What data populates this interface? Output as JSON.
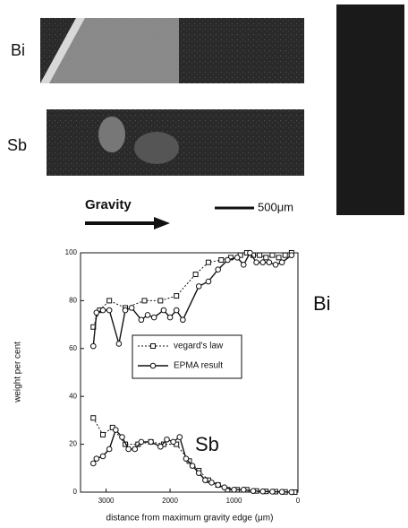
{
  "figure": {
    "maps": [
      "Bi",
      "Sb"
    ],
    "gravity": "Gravity",
    "scale": "500μm"
  },
  "chart_data": {
    "type": "line",
    "xlabel": "distance from maximum gravity edge (μm)",
    "ylabel": "weight per cent",
    "xlim": [
      3400,
      0
    ],
    "xticks": [
      3000,
      2000,
      1000,
      0
    ],
    "ylim": [
      0,
      100
    ],
    "yticks": [
      0,
      20,
      40,
      60,
      80,
      100
    ],
    "annotations": [
      "Bi",
      "Sb"
    ],
    "series": [
      {
        "name": "vegard's law",
        "color": "#111111",
        "marker": "square",
        "dashed": true,
        "x": [
          3200,
          3100,
          2950,
          2700,
          2400,
          2150,
          1900,
          1600,
          1400,
          1200,
          1050,
          900,
          800,
          700,
          600,
          500,
          400,
          300,
          200,
          100
        ],
        "values": [
          69,
          76,
          80,
          77,
          80,
          80,
          82,
          91,
          96,
          97,
          98,
          99,
          100,
          99,
          99,
          98,
          99,
          98,
          99,
          100
        ]
      },
      {
        "name": "EPMA result",
        "color": "#111111",
        "marker": "circle",
        "dashed": false,
        "x": [
          3200,
          3150,
          3050,
          2950,
          2800,
          2700,
          2600,
          2450,
          2350,
          2250,
          2100,
          2000,
          1900,
          1800,
          1550,
          1400,
          1250,
          1100,
          950,
          850,
          750,
          650,
          550,
          450,
          350,
          250,
          100
        ],
        "values": [
          61,
          75,
          76,
          76,
          62,
          76,
          77,
          72,
          74,
          73,
          76,
          73,
          76,
          72,
          86,
          88,
          93,
          97,
          98,
          95,
          100,
          96,
          96,
          96,
          95,
          96,
          99
        ]
      },
      {
        "color": "#111111",
        "marker": "square",
        "dashed": true,
        "x": [
          3200,
          3050,
          2900,
          2700,
          2500,
          2300,
          2100,
          1900,
          1700,
          1550,
          1400,
          1250,
          1100,
          950,
          800,
          650,
          500,
          350,
          200,
          50
        ],
        "values": [
          31,
          24,
          27,
          20,
          20,
          21,
          20,
          20,
          13,
          9,
          5,
          3,
          1,
          1,
          1,
          0.5,
          0.3,
          0.2,
          0.1,
          0
        ]
      },
      {
        "color": "#111111",
        "marker": "circle",
        "dashed": false,
        "x": [
          3200,
          3150,
          3050,
          2950,
          2850,
          2750,
          2650,
          2550,
          2450,
          2300,
          2150,
          2050,
          1950,
          1850,
          1750,
          1650,
          1550,
          1450,
          1350,
          1250,
          1150,
          1000,
          850,
          700,
          550,
          400,
          250,
          100
        ],
        "values": [
          12,
          14,
          15,
          18,
          26,
          23,
          18,
          18,
          21,
          21,
          19,
          22,
          21,
          23,
          14,
          11,
          8,
          5,
          4,
          3,
          2,
          1,
          1,
          0.5,
          0.3,
          0.2,
          0.1,
          0
        ]
      }
    ]
  }
}
